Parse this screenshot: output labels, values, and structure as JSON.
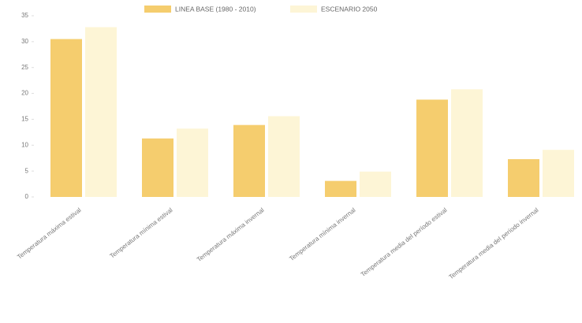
{
  "chart_data": {
    "type": "bar",
    "categories": [
      "Temperatura máxima estival",
      "Temperatura mínima estival",
      "Temperatura máxima invernal",
      "Temperatura mínima invernal",
      "Temperatura media del período estival",
      "Temperatura media del período invernal"
    ],
    "series": [
      {
        "name": "LINEA BASE (1980 - 2010)",
        "color": "#f5cd6e",
        "values": [
          30.5,
          11.3,
          13.9,
          3.1,
          18.8,
          7.3
        ]
      },
      {
        "name": "ESCENARIO 2050",
        "color": "#fdf5d6",
        "values": [
          32.8,
          13.2,
          15.6,
          4.9,
          20.8,
          9.1
        ]
      }
    ],
    "ylim": [
      0,
      35
    ],
    "yticks": [
      0,
      5,
      10,
      15,
      20,
      25,
      30,
      35
    ],
    "grid": false,
    "legend": "top"
  }
}
